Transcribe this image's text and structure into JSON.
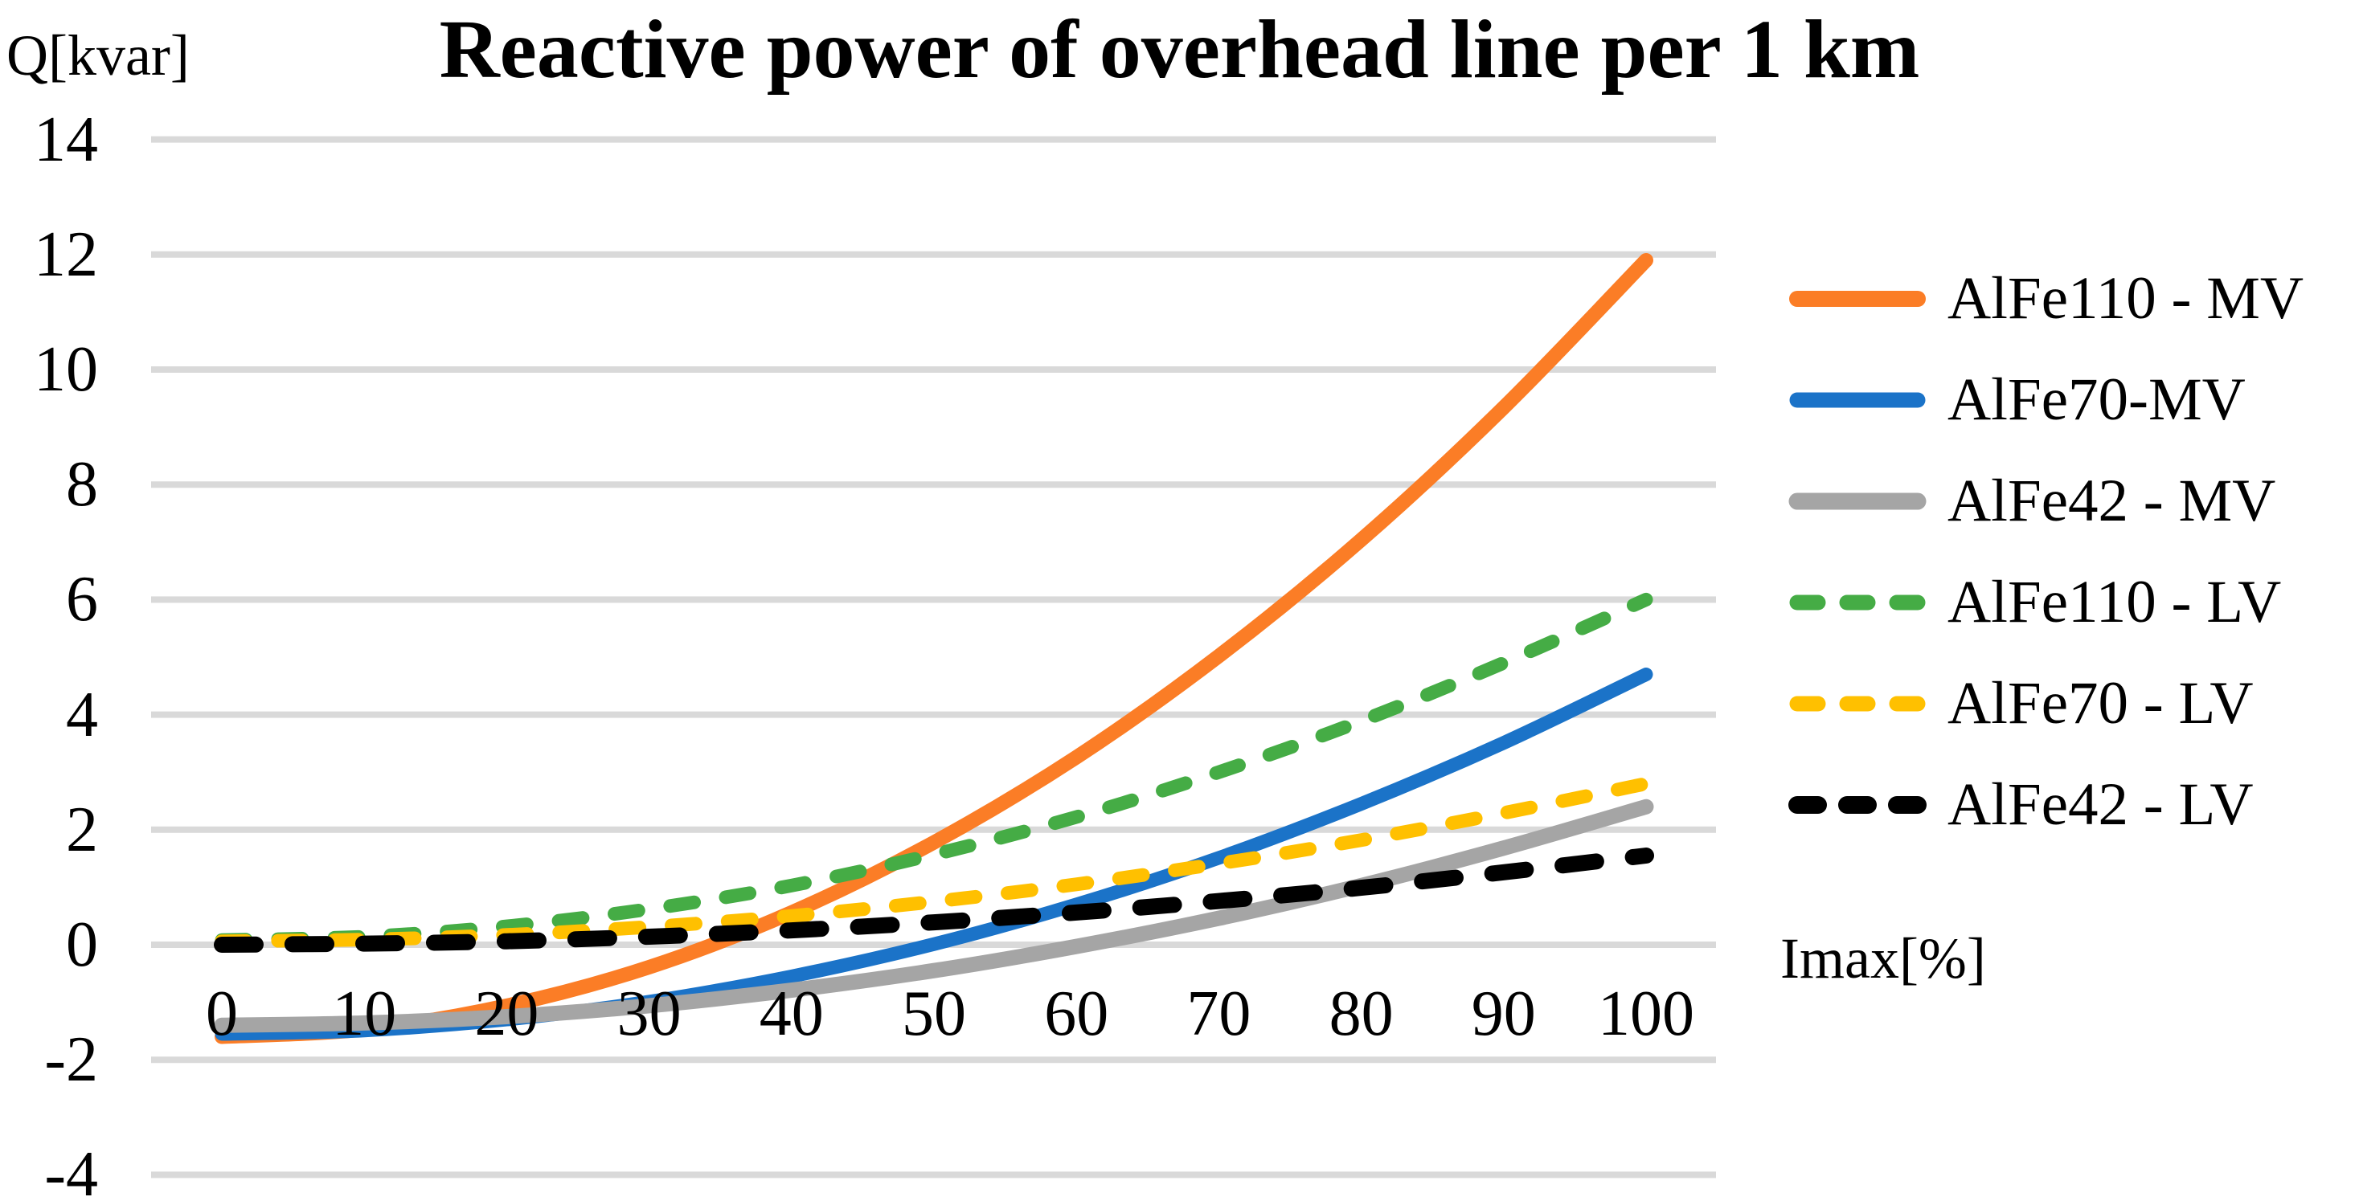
{
  "chart": {
    "title": "Reactive power of overhead line per 1 km",
    "y_axis_label": "Q[kvar]",
    "x_axis_label": "Imax[%]"
  },
  "chart_data": {
    "type": "line",
    "title": "Reactive power of overhead line per 1 km",
    "xlabel": "Imax[%]",
    "ylabel": "Q[kvar]",
    "x": [
      0,
      10,
      20,
      30,
      40,
      50,
      60,
      70,
      80,
      90,
      100
    ],
    "xlim": [
      0,
      100
    ],
    "ylim": [
      -4,
      14
    ],
    "yticks": [
      14,
      12,
      10,
      8,
      6,
      4,
      2,
      0,
      -2,
      -4
    ],
    "xticks": [
      0,
      10,
      20,
      30,
      40,
      50,
      60,
      70,
      80,
      90,
      100
    ],
    "grid": "horizontal",
    "gridline_color": "#D9D9D9",
    "legend_position": "right",
    "series": [
      {
        "name": "AlFe110 - MV",
        "color": "#FB7D26",
        "dashed": false,
        "width": 18,
        "values": [
          -1.6,
          -1.47,
          -1.06,
          -0.39,
          0.56,
          1.78,
          3.26,
          5.02,
          7.04,
          9.34,
          11.9
        ]
      },
      {
        "name": "AlFe70-MV",
        "color": "#1B73C8",
        "dashed": false,
        "width": 17,
        "values": [
          -1.55,
          -1.49,
          -1.3,
          -0.99,
          -0.55,
          0.01,
          0.7,
          1.51,
          2.45,
          3.51,
          4.7
        ]
      },
      {
        "name": "AlFe42 - MV",
        "color": "#A5A5A5",
        "dashed": false,
        "width": 19,
        "values": [
          -1.4,
          -1.36,
          -1.25,
          -1.06,
          -0.79,
          -0.45,
          -0.03,
          0.46,
          1.03,
          1.68,
          2.4
        ]
      },
      {
        "name": "AlFe110 - LV",
        "color": "#45AC45",
        "dashed": true,
        "width": 17,
        "values": [
          0.08,
          0.14,
          0.32,
          0.62,
          1.03,
          1.57,
          2.22,
          3.0,
          3.89,
          4.9,
          6.0
        ]
      },
      {
        "name": "AlFe70 - LV",
        "color": "#FFC000",
        "dashed": true,
        "width": 17,
        "values": [
          0.06,
          0.09,
          0.17,
          0.31,
          0.5,
          0.75,
          1.05,
          1.41,
          1.82,
          2.29,
          2.8
        ]
      },
      {
        "name": "AlFe42 - LV",
        "color": "#000000",
        "dashed": true,
        "width": 20,
        "values": [
          0.0,
          0.02,
          0.06,
          0.14,
          0.25,
          0.39,
          0.56,
          0.76,
          0.99,
          1.26,
          1.55
        ]
      }
    ]
  }
}
